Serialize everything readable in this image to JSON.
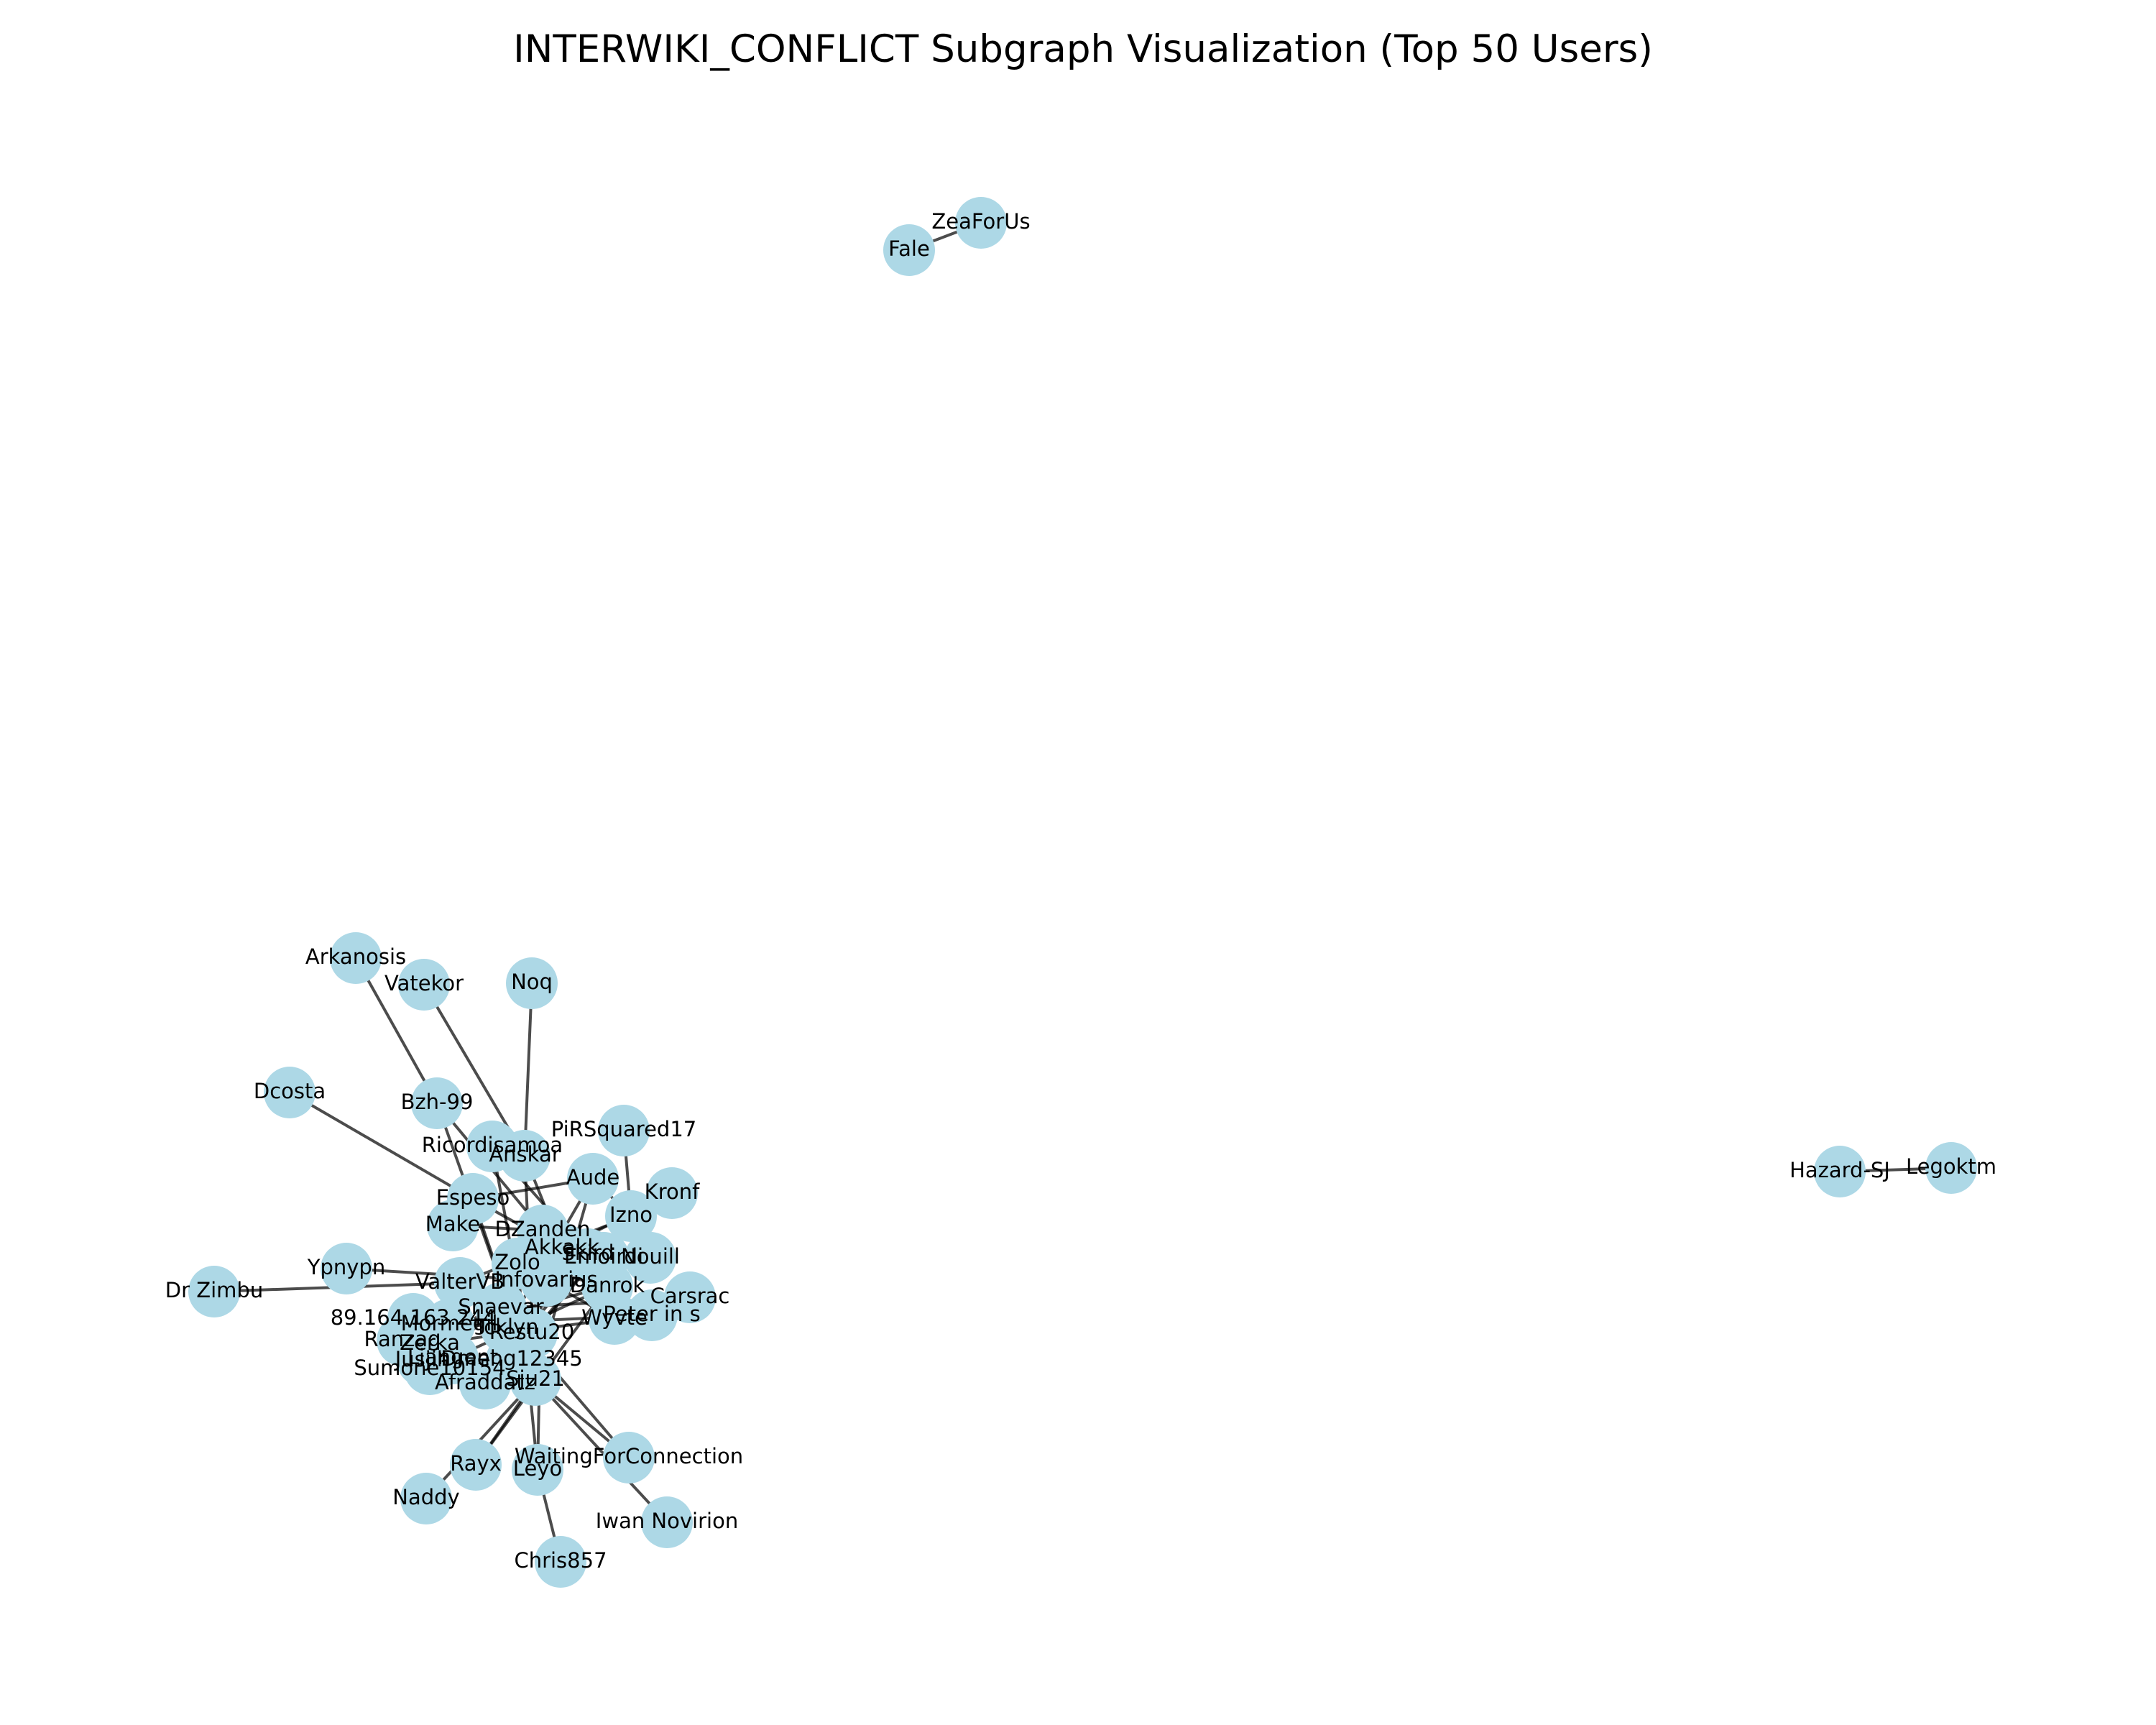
{
  "title": "INTERWIKI_CONFLICT Subgraph Visualization (Top 50 Users)",
  "colors": {
    "node_fill": "#add8e6",
    "edge": "#000000",
    "background": "#ffffff"
  },
  "graph": {
    "nodes": [
      {
        "id": "n01",
        "label": "ZeaForUs"
      },
      {
        "id": "n02",
        "label": "Fale"
      },
      {
        "id": "n03",
        "label": "Legoktm"
      },
      {
        "id": "n04",
        "label": "Hazard-SJ"
      },
      {
        "id": "n05",
        "label": "Arkanosis"
      },
      {
        "id": "n06",
        "label": "Vatekor"
      },
      {
        "id": "n07",
        "label": "Noq"
      },
      {
        "id": "n08",
        "label": "Dcosta"
      },
      {
        "id": "n09",
        "label": "Bzh-99"
      },
      {
        "id": "n10",
        "label": "PiRSquared17"
      },
      {
        "id": "n11",
        "label": "Ricordisamoa"
      },
      {
        "id": "n12",
        "label": "Anskar"
      },
      {
        "id": "n13",
        "label": "Aude"
      },
      {
        "id": "n14",
        "label": "Kronf"
      },
      {
        "id": "n15",
        "label": "Espeso"
      },
      {
        "id": "n16",
        "label": "Izno"
      },
      {
        "id": "n17",
        "label": "Make"
      },
      {
        "id": "n18",
        "label": "DZanden"
      },
      {
        "id": "n19",
        "label": "Akkakk"
      },
      {
        "id": "n20",
        "label": "Skird"
      },
      {
        "id": "n21",
        "label": "Emoirdi"
      },
      {
        "id": "n22",
        "label": "Nouill"
      },
      {
        "id": "n23",
        "label": "Zolo"
      },
      {
        "id": "n24",
        "label": "Ypnypn"
      },
      {
        "id": "n25",
        "label": "Infovarius"
      },
      {
        "id": "n26",
        "label": "Danrok"
      },
      {
        "id": "n27",
        "label": "Carsrac"
      },
      {
        "id": "n28",
        "label": "Dr Zimbu"
      },
      {
        "id": "n29",
        "label": "ValterVB"
      },
      {
        "id": "n30",
        "label": "Snaevar"
      },
      {
        "id": "n31",
        "label": "Peter in s"
      },
      {
        "id": "n32",
        "label": "Wyvte"
      },
      {
        "id": "n33",
        "label": "89.164.163.244"
      },
      {
        "id": "n34",
        "label": "Mormegil"
      },
      {
        "id": "n35",
        "label": "Restu20"
      },
      {
        "id": "n36",
        "label": "Tcklyn"
      },
      {
        "id": "n37",
        "label": "Ranzag"
      },
      {
        "id": "n38",
        "label": "Zerka"
      },
      {
        "id": "n39",
        "label": "Jusjih"
      },
      {
        "id": "n40",
        "label": "Liangent"
      },
      {
        "id": "n41",
        "label": "Dmeng12345"
      },
      {
        "id": "n42",
        "label": "Sumone10154"
      },
      {
        "id": "n43",
        "label": "Afraddatz"
      },
      {
        "id": "n44",
        "label": "Sju21"
      },
      {
        "id": "n45",
        "label": "WaitingForConnection"
      },
      {
        "id": "n46",
        "label": "Rayx"
      },
      {
        "id": "n47",
        "label": "Leyo"
      },
      {
        "id": "n48",
        "label": "Naddy"
      },
      {
        "id": "n49",
        "label": "Iwan Novirion"
      },
      {
        "id": "n50",
        "label": "Chris857"
      }
    ],
    "edges": [
      [
        "n01",
        "n02"
      ],
      [
        "n03",
        "n04"
      ],
      [
        "n05",
        "n09"
      ],
      [
        "n09",
        "n18"
      ],
      [
        "n06",
        "n12"
      ],
      [
        "n07",
        "n12"
      ],
      [
        "n08",
        "n15"
      ],
      [
        "n15",
        "n19"
      ],
      [
        "n10",
        "n16"
      ],
      [
        "n11",
        "n20"
      ],
      [
        "n12",
        "n19"
      ],
      [
        "n13",
        "n16"
      ],
      [
        "n14",
        "n19"
      ],
      [
        "n15",
        "n13"
      ],
      [
        "n17",
        "n18"
      ],
      [
        "n18",
        "n26"
      ],
      [
        "n19",
        "n21"
      ],
      [
        "n20",
        "n22"
      ],
      [
        "n23",
        "n26"
      ],
      [
        "n24",
        "n25"
      ],
      [
        "n28",
        "n29"
      ],
      [
        "n29",
        "n16"
      ],
      [
        "n25",
        "n32"
      ],
      [
        "n30",
        "n27"
      ],
      [
        "n31",
        "n26"
      ],
      [
        "n33",
        "n36"
      ],
      [
        "n34",
        "n31"
      ],
      [
        "n35",
        "n16"
      ],
      [
        "n37",
        "n26"
      ],
      [
        "n38",
        "n32"
      ],
      [
        "n39",
        "n19"
      ],
      [
        "n40",
        "n26"
      ],
      [
        "n41",
        "n16"
      ],
      [
        "n42",
        "n19"
      ],
      [
        "n43",
        "n20"
      ],
      [
        "n44",
        "n13"
      ],
      [
        "n44",
        "n45"
      ],
      [
        "n44",
        "n49"
      ],
      [
        "n44",
        "n46"
      ],
      [
        "n47",
        "n18"
      ],
      [
        "n48",
        "n44"
      ],
      [
        "n50",
        "n47"
      ],
      [
        "n46",
        "n26"
      ],
      [
        "n45",
        "n30"
      ],
      [
        "n11",
        "n44"
      ],
      [
        "n15",
        "n44"
      ],
      [
        "n12",
        "n44"
      ],
      [
        "n09",
        "n44"
      ],
      [
        "n36",
        "n13"
      ],
      [
        "n23",
        "n47"
      ]
    ]
  }
}
